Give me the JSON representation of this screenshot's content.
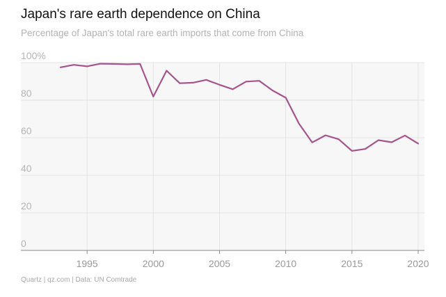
{
  "title": "Japan's rare earth dependence on China",
  "subtitle": "Percentage of Japan's total rare earth imports that come from China",
  "source": "Quartz | qz.com | Data: UN Comtrade",
  "chart_data": {
    "type": "line",
    "title": "Japan's rare earth dependence on China",
    "subtitle": "Percentage of Japan's total rare earth imports that come from China",
    "xlabel": "",
    "ylabel": "",
    "xlim": [
      1990,
      2020
    ],
    "ylim": [
      0,
      100
    ],
    "x_ticks": [
      "1995",
      "2000",
      "2005",
      "2010",
      "2015",
      "2020"
    ],
    "y_ticks": [
      "100%",
      "80",
      "60",
      "40",
      "20",
      "0"
    ],
    "grid": true,
    "legend": "none",
    "series": [
      {
        "color": "#a5548d",
        "x": [
          1993,
          1994,
          1995,
          1996,
          1997,
          1998,
          1999,
          2000,
          2001,
          2002,
          2003,
          2004,
          2005,
          2006,
          2007,
          2008,
          2009,
          2010,
          2011,
          2012,
          2013,
          2014,
          2015,
          2016,
          2017,
          2018,
          2019,
          2020
        ],
        "y": [
          97.5,
          98.8,
          98.0,
          99.4,
          99.3,
          99.1,
          99.3,
          81.9,
          95.7,
          89.0,
          89.3,
          90.8,
          88.2,
          85.8,
          89.9,
          90.3,
          85.2,
          81.3,
          67.5,
          57.5,
          61.3,
          59.2,
          53.0,
          54.0,
          58.7,
          57.6,
          61.2,
          56.9
        ]
      }
    ]
  }
}
